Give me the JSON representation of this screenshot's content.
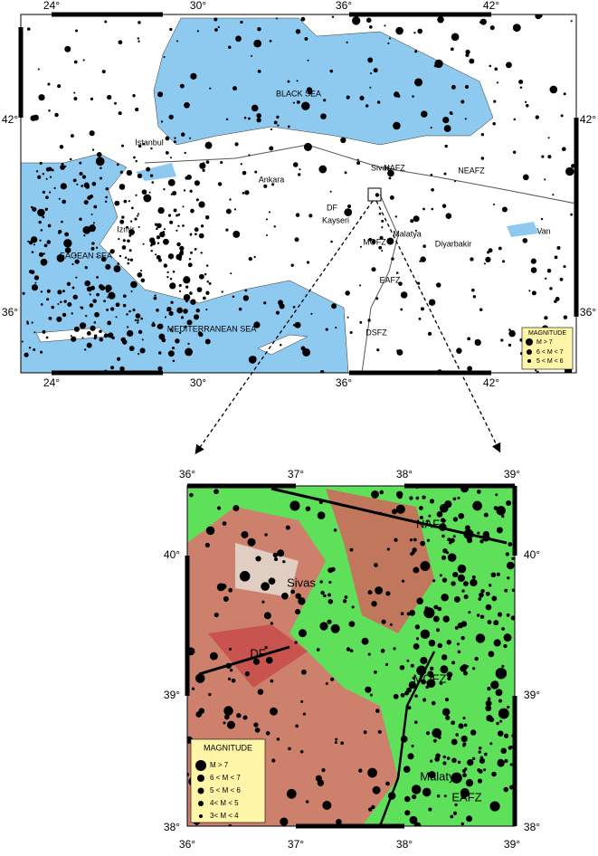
{
  "overview_map": {
    "x_labels": [
      "24°",
      "30°",
      "36°",
      "42°"
    ],
    "y_labels": [
      "42°",
      "36°"
    ],
    "places": [
      "BLACK SEA",
      "Istanbul",
      "Ankara",
      "Sivas",
      "NAFZ",
      "NEAFZ",
      "DF",
      "Kayseri",
      "Izmir",
      "MOFZ",
      "Malatya",
      "Diyarbakir",
      "Van",
      "EAGEAN SEA",
      "EAFZ",
      "MEDITERRANEAN SEA",
      "DSFZ"
    ],
    "legend": {
      "title": "MAGNITUDE",
      "entries": [
        "M > 7",
        "6 < M < 7",
        "5 < M < 6"
      ]
    }
  },
  "detail_map": {
    "x_labels": [
      "36°",
      "37°",
      "38°",
      "39°"
    ],
    "y_labels": [
      "40°",
      "39°",
      "38°"
    ],
    "places": [
      "NAFZ",
      "Sivas",
      "DF",
      "MOFZ",
      "Malatya",
      "EAFZ"
    ],
    "legend": {
      "title": "MAGNITUDE",
      "entries": [
        "M > 7",
        "6 < M < 7",
        "5 < M < 6",
        "4< M < 5",
        "3< M < 4"
      ]
    }
  }
}
